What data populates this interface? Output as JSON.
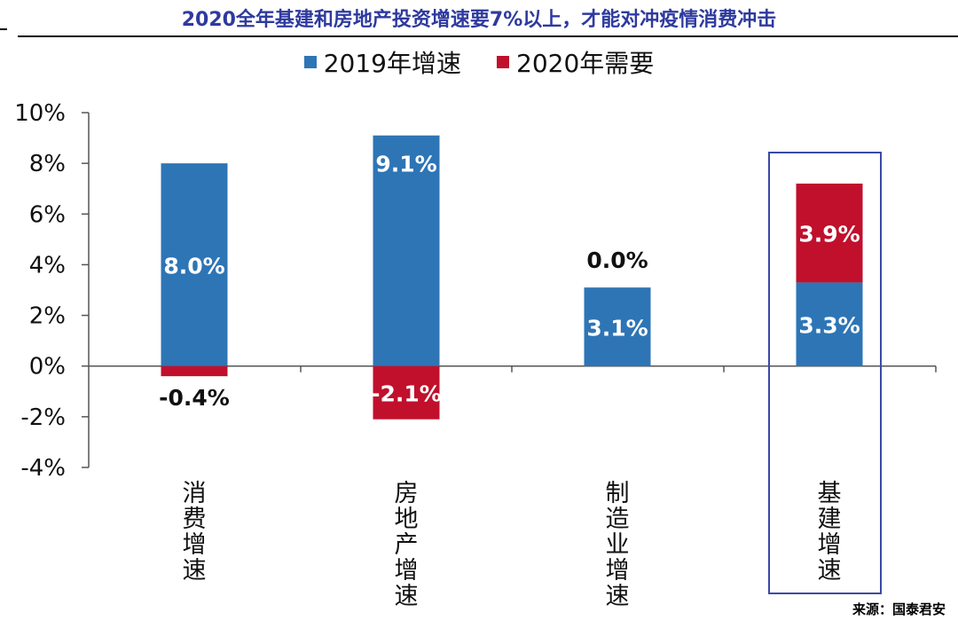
{
  "title": "2020全年基建和房地产投资增速要7%以上，才能对冲疫情消费冲击",
  "source": "来源：国泰君安",
  "colors": {
    "blue": "#2e75b6",
    "red": "#c0102c",
    "title": "#2e3a9e",
    "highlight_box": "#3b4aa6"
  },
  "chart_data": {
    "type": "bar",
    "stacked": true,
    "categories": [
      "消费增速",
      "房地产增速",
      "制造业增速",
      "基建增速"
    ],
    "series": [
      {
        "name": "2019年增速",
        "color": "#2e75b6",
        "values": [
          8.0,
          9.1,
          3.1,
          3.3
        ],
        "labels": [
          "8.0%",
          "9.1%",
          "3.1%",
          "3.3%"
        ]
      },
      {
        "name": "2020年需要",
        "color": "#c0102c",
        "values": [
          -0.4,
          -2.1,
          0.0,
          3.9
        ],
        "labels": [
          "-0.4%",
          "-2.1%",
          "0.0%",
          "3.9%"
        ]
      }
    ],
    "ylim": [
      -4,
      10
    ],
    "yticks": [
      10,
      8,
      6,
      4,
      2,
      0,
      -2,
      -4
    ],
    "ytick_labels": [
      "10%",
      "8%",
      "6%",
      "4%",
      "2%",
      "0%",
      "-2%",
      "-4%"
    ],
    "legend_position": "top",
    "grid": false,
    "highlighted_category": "基建增速"
  }
}
